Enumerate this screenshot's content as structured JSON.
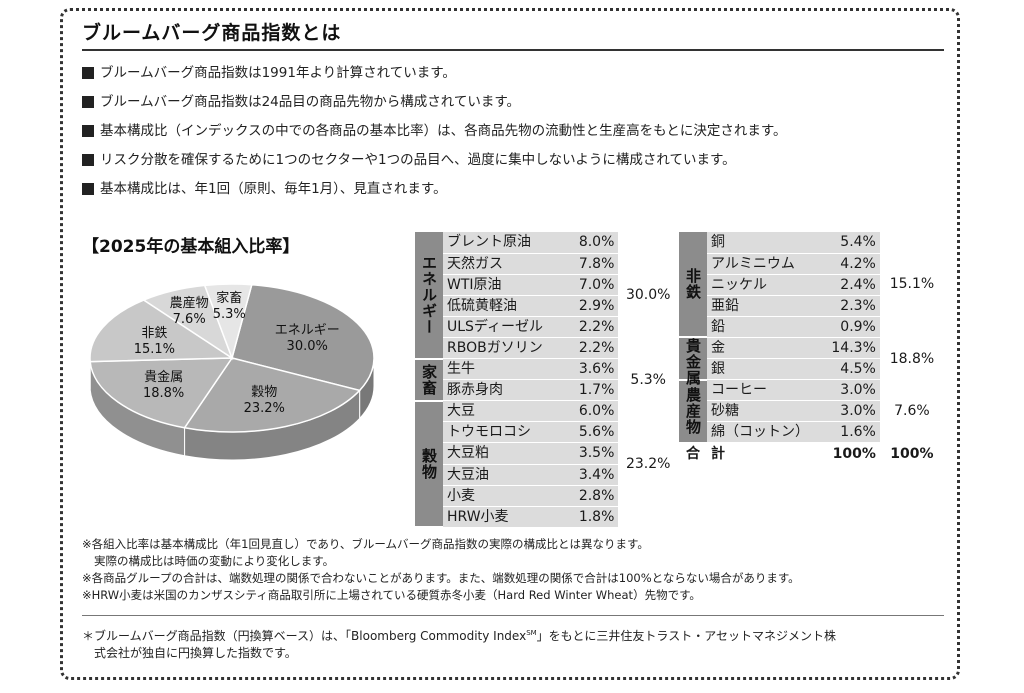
{
  "title": "ブルームバーグ商品指数とは",
  "bullets": [
    "ブルームバーグ商品指数は1991年より計算されています。",
    "ブルームバーグ商品指数は24品目の商品先物から構成されています。",
    "基本構成比（インデックスの中での各商品の基本比率）は、各商品先物の流動性と生産高をもとに決定されます。",
    "リスク分散を確保するために1つのセクターや1つの品目へ、過度に集中しないように構成されています。",
    "基本構成比は、年1回（原則、毎年1月）、見直されます。"
  ],
  "pie_title": "【2025年の基本組入比率】",
  "chart_data": {
    "type": "pie",
    "title": "【2025年の基本組入比率】",
    "slices": [
      {
        "label": "エネルギー",
        "value": 30.0,
        "value_text": "30.0%",
        "color": "#9a9a9a"
      },
      {
        "label": "穀物",
        "value": 23.2,
        "value_text": "23.2%",
        "color": "#a9a9a9"
      },
      {
        "label": "貴金属",
        "value": 18.8,
        "value_text": "18.8%",
        "color": "#b8b8b8"
      },
      {
        "label": "非鉄",
        "value": 15.1,
        "value_text": "15.1%",
        "color": "#c8c8c8"
      },
      {
        "label": "農産物",
        "value": 7.6,
        "value_text": "7.6%",
        "color": "#d8d8d8"
      },
      {
        "label": "家畜",
        "value": 5.3,
        "value_text": "5.3%",
        "color": "#e6e6e6"
      }
    ]
  },
  "table": {
    "left": [
      {
        "category": "エネルギー",
        "total": "30.0%",
        "items": [
          {
            "name": "ブレント原油",
            "pct": "8.0%"
          },
          {
            "name": "天然ガス",
            "pct": "7.8%"
          },
          {
            "name": "WTI原油",
            "pct": "7.0%"
          },
          {
            "name": "低硫黄軽油",
            "pct": "2.9%"
          },
          {
            "name": "ULSディーゼル",
            "pct": "2.2%"
          },
          {
            "name": "RBOBガソリン",
            "pct": "2.2%"
          }
        ]
      },
      {
        "category": "家畜",
        "total": "5.3%",
        "items": [
          {
            "name": "生牛",
            "pct": "3.6%"
          },
          {
            "name": "豚赤身肉",
            "pct": "1.7%"
          }
        ]
      },
      {
        "category": "穀物",
        "total": "23.2%",
        "items": [
          {
            "name": "大豆",
            "pct": "6.0%"
          },
          {
            "name": "トウモロコシ",
            "pct": "5.6%"
          },
          {
            "name": "大豆粕",
            "pct": "3.5%"
          },
          {
            "name": "大豆油",
            "pct": "3.4%"
          },
          {
            "name": "小麦",
            "pct": "2.8%"
          },
          {
            "name": "HRW小麦",
            "pct": "1.8%"
          }
        ]
      }
    ],
    "right": [
      {
        "category": "非鉄",
        "total": "15.1%",
        "items": [
          {
            "name": "銅",
            "pct": "5.4%"
          },
          {
            "name": "アルミニウム",
            "pct": "4.2%"
          },
          {
            "name": "ニッケル",
            "pct": "2.4%"
          },
          {
            "name": "亜鉛",
            "pct": "2.3%"
          },
          {
            "name": "鉛",
            "pct": "0.9%"
          }
        ]
      },
      {
        "category": "貴金属",
        "total": "18.8%",
        "items": [
          {
            "name": "金",
            "pct": "14.3%"
          },
          {
            "name": "銀",
            "pct": "4.5%"
          }
        ]
      },
      {
        "category": "農産物",
        "total": "7.6%",
        "items": [
          {
            "name": "コーヒー",
            "pct": "3.0%"
          },
          {
            "name": "砂糖",
            "pct": "3.0%"
          },
          {
            "name": "綿（コットン）",
            "pct": "1.6%"
          }
        ]
      }
    ],
    "grand_total": {
      "label_1": "合",
      "label_2": "計",
      "pct": "100%",
      "total": "100%"
    }
  },
  "notes": [
    "※各組入比率は基本構成比（年1回見直し）であり、ブルームバーグ商品指数の実際の構成比とは異なります。",
    "実際の構成比は時価の変動により変化します。",
    "※各商品グループの合計は、端数処理の関係で合わないことがあります。また、端数処理の関係で合計は100%とならない場合があります。",
    "※HRW小麦は米国のカンザスシティ商品取引所に上場されている硬質赤冬小麦（Hard Red Winter Wheat）先物です。"
  ],
  "footnote": {
    "line1_pre": "＊ブルームバーグ商品指数（円換算ベース）は、「Bloomberg Commodity Index",
    "sup": "SM",
    "line1_post": "」をもとに三井住友トラスト・アセットマネジメント株",
    "line2": "式会社が独自に円換算した指数です。"
  }
}
